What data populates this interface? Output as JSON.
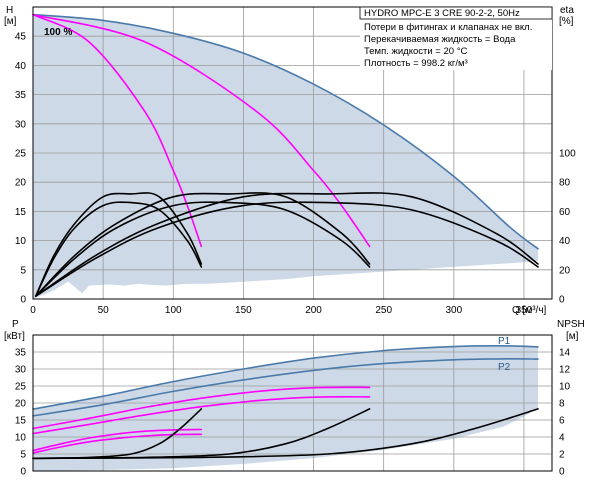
{
  "title": "HYDRO MPC-E 3 CRE 90-2-2, 50Hz",
  "info_lines": [
    "Потери в фитингах и клапанах не вкл.",
    "Перекачиваемая жидкость = Вода",
    "Темп. жидкости = 20 °C",
    "Плотность = 998.2 кг/м³"
  ],
  "colors": {
    "pump_curve": "#4a7aaa",
    "speed_curves": "#ff00ff",
    "eta_curves": "#000000",
    "area_fill": "#cdd9e7",
    "grid": "#9a9a9a"
  },
  "chart_data": [
    {
      "type": "line",
      "name": "H / eta",
      "label_100": "100 %",
      "y_axis": {
        "label": "H",
        "unit": "[м]",
        "ylim": [
          0,
          50
        ],
        "ticks": [
          "0",
          "5",
          "10",
          "15",
          "20",
          "25",
          "30",
          "35",
          "40",
          "45"
        ]
      },
      "y2_axis": {
        "label": "eta",
        "unit": "[%]",
        "ylim": [
          0,
          200
        ],
        "ticks": [
          "0",
          "20",
          "40",
          "60",
          "80",
          "100"
        ]
      },
      "x_axis": {
        "label": "Q [м³/ч]",
        "xlim": [
          0,
          370
        ],
        "ticks": [
          "0",
          "50",
          "100",
          "150",
          "200",
          "250",
          "300",
          "350"
        ]
      },
      "grid": true,
      "region_bottom_H": [
        [
          0,
          0
        ],
        [
          15,
          1.5
        ],
        [
          25,
          3
        ],
        [
          35,
          1
        ],
        [
          40,
          2.3
        ],
        [
          55,
          2.5
        ],
        [
          65,
          2.3
        ],
        [
          75,
          2.6
        ],
        [
          85,
          2.4
        ],
        [
          95,
          2.3
        ],
        [
          110,
          2.6
        ],
        [
          125,
          2.6
        ],
        [
          140,
          2.8
        ],
        [
          160,
          3.1
        ],
        [
          180,
          3.4
        ],
        [
          200,
          3.9
        ],
        [
          225,
          4.3
        ],
        [
          250,
          4.7
        ],
        [
          275,
          5.1
        ],
        [
          300,
          5.5
        ],
        [
          325,
          5.9
        ],
        [
          345,
          6.2
        ],
        [
          360,
          6.5
        ]
      ],
      "series": [
        {
          "role": "head_max",
          "x": [
            0,
            50,
            100,
            150,
            200,
            250,
            300,
            340,
            360
          ],
          "y": [
            48.7,
            47.7,
            45.5,
            42.1,
            36.8,
            29.8,
            21,
            12.3,
            8.6
          ]
        },
        {
          "role": "head_speed",
          "x": [
            0,
            40,
            80,
            100,
            110,
            120
          ],
          "y": [
            48.7,
            44,
            32,
            22,
            16,
            9
          ]
        },
        {
          "role": "head_speed",
          "x": [
            0,
            80,
            160,
            200,
            220,
            240
          ],
          "y": [
            48.7,
            44,
            32,
            22,
            16,
            9
          ]
        },
        {
          "role": "eta",
          "x": [
            2,
            15,
            30,
            50,
            70,
            90,
            110,
            120
          ],
          "y2": [
            2,
            30,
            52,
            70,
            72,
            70,
            45,
            24
          ]
        },
        {
          "role": "eta",
          "x": [
            2,
            15,
            30,
            50,
            70,
            90,
            110,
            120
          ],
          "y2": [
            2,
            28,
            49,
            64,
            66,
            61,
            40,
            22
          ]
        },
        {
          "role": "eta",
          "x": [
            2,
            30,
            60,
            100,
            140,
            180,
            220,
            240
          ],
          "y2": [
            2,
            30,
            52,
            70,
            72,
            70,
            45,
            24
          ]
        },
        {
          "role": "eta",
          "x": [
            2,
            30,
            60,
            100,
            140,
            180,
            220,
            240
          ],
          "y2": [
            2,
            28,
            49,
            64,
            66,
            61,
            40,
            22
          ]
        },
        {
          "role": "eta",
          "x": [
            2,
            45,
            90,
            150,
            210,
            270,
            330,
            360
          ],
          "y2": [
            2,
            30,
            52,
            70,
            72,
            70,
            45,
            24
          ]
        },
        {
          "role": "eta",
          "x": [
            2,
            45,
            90,
            150,
            210,
            270,
            330,
            360
          ],
          "y2": [
            2,
            28,
            49,
            64,
            66,
            61,
            40,
            22
          ]
        }
      ]
    },
    {
      "type": "line",
      "name": "P / NPSH",
      "y_axis": {
        "label": "P",
        "unit": "[кВт]",
        "ylim": [
          0,
          40
        ],
        "ticks": [
          "0",
          "5",
          "10",
          "15",
          "20",
          "25",
          "30",
          "35"
        ]
      },
      "y2_axis": {
        "label": "NPSH",
        "unit": "[м]",
        "ylim": [
          0,
          16
        ],
        "ticks": [
          "0",
          "2",
          "4",
          "6",
          "8",
          "10",
          "12",
          "14"
        ]
      },
      "x_axis": {
        "xlim": [
          0,
          370
        ]
      },
      "grid": true,
      "region_bottom_P": [
        [
          0,
          0
        ],
        [
          50,
          0.3
        ],
        [
          100,
          0.8
        ],
        [
          150,
          2.1
        ],
        [
          200,
          3.8
        ],
        [
          250,
          6.2
        ],
        [
          300,
          9.5
        ],
        [
          335,
          13
        ],
        [
          350,
          16
        ],
        [
          360,
          18.5
        ]
      ],
      "series": [
        {
          "name": "P1",
          "role": "power_max",
          "x": [
            0,
            50,
            100,
            150,
            200,
            250,
            300,
            340,
            360
          ],
          "y": [
            18.2,
            22,
            26.3,
            30,
            33.2,
            35.4,
            36.6,
            36.8,
            36.5
          ]
        },
        {
          "name": "P2",
          "role": "power_max",
          "x": [
            0,
            50,
            100,
            150,
            200,
            250,
            300,
            340,
            360
          ],
          "y": [
            16.2,
            19.5,
            23.4,
            26.8,
            29.6,
            31.6,
            32.7,
            33,
            32.9
          ]
        },
        {
          "role": "power_speed",
          "x": [
            0,
            40,
            80,
            120,
            160,
            200,
            240
          ],
          "y": [
            12.5,
            15.5,
            18.7,
            21.4,
            23.4,
            24.5,
            24.6
          ]
        },
        {
          "role": "power_speed",
          "x": [
            0,
            40,
            80,
            120,
            160,
            200,
            240
          ],
          "y": [
            11,
            13.7,
            16.5,
            18.9,
            20.7,
            21.7,
            21.8
          ]
        },
        {
          "role": "power_speed",
          "x": [
            0,
            20,
            40,
            60,
            80,
            100,
            120
          ],
          "y": [
            6,
            8,
            9.7,
            10.9,
            11.7,
            12.1,
            12.2
          ]
        },
        {
          "role": "power_speed",
          "x": [
            0,
            20,
            40,
            60,
            80,
            100,
            120
          ],
          "y": [
            5.3,
            7.1,
            8.6,
            9.6,
            10.3,
            10.7,
            10.8
          ]
        },
        {
          "role": "npsh",
          "x": [
            0,
            40,
            70,
            90,
            105,
            120
          ],
          "y2": [
            1.5,
            1.6,
            2,
            3.2,
            5,
            7.3
          ]
        },
        {
          "role": "npsh",
          "x": [
            0,
            80,
            140,
            180,
            210,
            240
          ],
          "y2": [
            1.5,
            1.6,
            2,
            3.2,
            5,
            7.3
          ]
        },
        {
          "role": "npsh",
          "x": [
            0,
            120,
            210,
            270,
            315,
            360
          ],
          "y2": [
            1.5,
            1.6,
            2,
            3.2,
            5,
            7.3
          ]
        }
      ]
    }
  ]
}
